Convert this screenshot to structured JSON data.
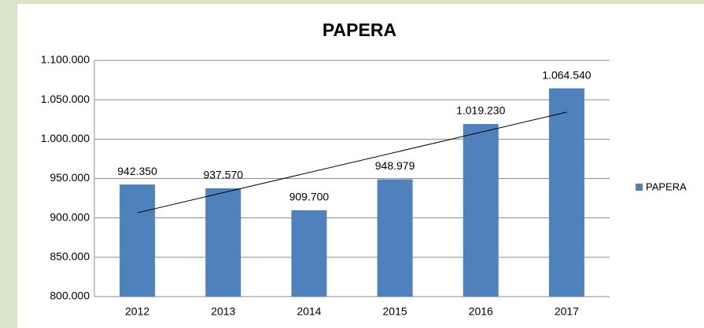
{
  "chart_data": {
    "type": "bar",
    "title": "PAPERA",
    "categories": [
      "2012",
      "2013",
      "2014",
      "2015",
      "2016",
      "2017"
    ],
    "series": [
      {
        "name": "PAPERA",
        "color": "#4f81bd",
        "values": [
          942350,
          937570,
          909700,
          948979,
          1019230,
          1064540
        ],
        "value_labels": [
          "942.350",
          "937.570",
          "909.700",
          "948.979",
          "1.019.230",
          "1.064.540"
        ]
      }
    ],
    "ylim": [
      800000,
      1100000
    ],
    "yticks": [
      {
        "value": 800000,
        "label": "800.000"
      },
      {
        "value": 850000,
        "label": "850.000"
      },
      {
        "value": 900000,
        "label": "900.000"
      },
      {
        "value": 950000,
        "label": "950.000"
      },
      {
        "value": 1000000,
        "label": "1.000.000"
      },
      {
        "value": 1050000,
        "label": "1.050.000"
      },
      {
        "value": 1100000,
        "label": "1.100.000"
      }
    ],
    "grid": true,
    "legend": "right",
    "trendline": "linear"
  }
}
